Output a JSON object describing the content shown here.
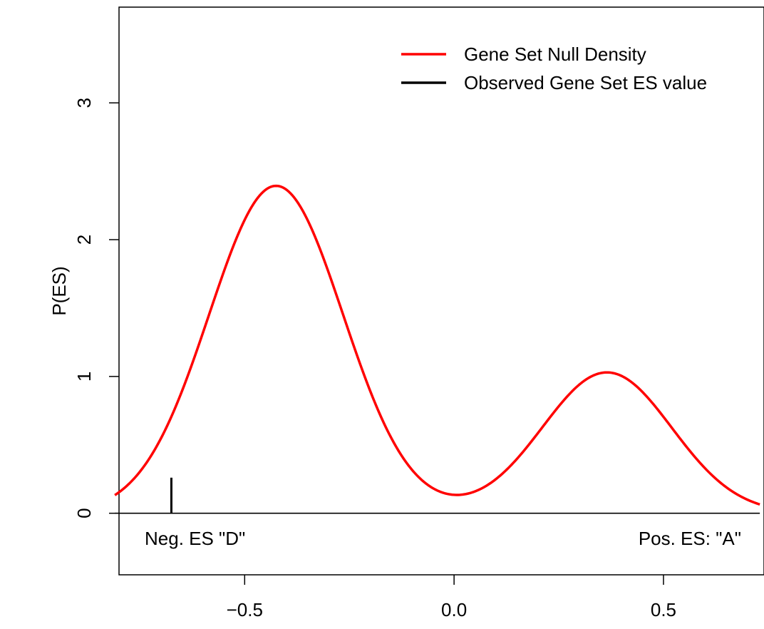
{
  "chart_data": {
    "type": "line",
    "title": "",
    "xlabel": "",
    "ylabel": "P(ES)",
    "xlim": [
      -0.8,
      0.74
    ],
    "ylim": [
      -0.45,
      3.7
    ],
    "x_ticks": [
      -0.5,
      0.0,
      0.5
    ],
    "x_tick_labels": [
      "−0.5",
      "0.0",
      "0.5"
    ],
    "y_ticks": [
      0,
      1,
      2,
      3
    ],
    "y_tick_labels": [
      "0",
      "1",
      "2",
      "3"
    ],
    "grid": false,
    "legend_position": "top-right",
    "series": [
      {
        "name": "Gene Set Null Density",
        "color": "#ff0000",
        "components": [
          {
            "weight": 0.96,
            "mean": -0.425,
            "sd": 0.16
          },
          {
            "weight": 0.4,
            "mean": 0.365,
            "sd": 0.155
          }
        ],
        "x_range": [
          -0.81,
          0.73
        ],
        "peaks": [
          {
            "x": -0.425,
            "y": 2.4
          },
          {
            "x": 0.365,
            "y": 1.03
          }
        ]
      },
      {
        "name": "Observed Gene Set ES value",
        "color": "#000000",
        "x": -0.675,
        "y": 0.26
      }
    ],
    "annotations": [
      {
        "text": "Neg. ES \"D\"",
        "side": "left"
      },
      {
        "text": "Pos. ES: \"A\"",
        "side": "right"
      }
    ]
  }
}
